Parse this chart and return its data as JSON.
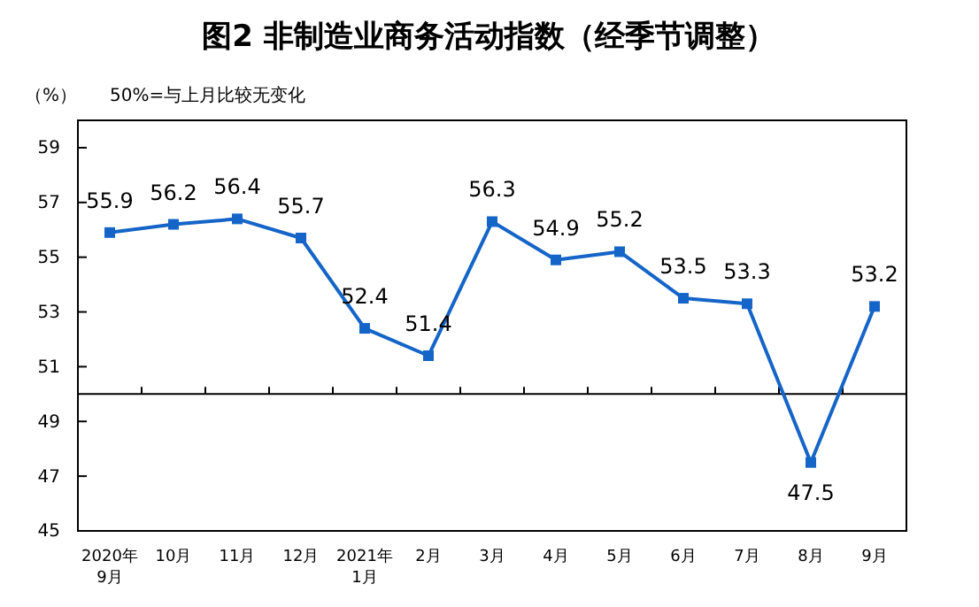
{
  "chart_data": {
    "type": "line",
    "title": "图2  非制造业商务活动指数（经季节调整）",
    "annotations": [
      "（%）",
      "50%=与上月比较无变化"
    ],
    "categories": [
      "2020年\n9月",
      "10月",
      "11月",
      "12月",
      "2021年\n1月",
      "2月",
      "3月",
      "4月",
      "5月",
      "6月",
      "7月",
      "8月",
      "9月"
    ],
    "series": [
      {
        "color": "#1565c8",
        "values": [
          55.9,
          56.2,
          56.4,
          55.7,
          52.4,
          51.4,
          56.3,
          54.9,
          55.2,
          53.5,
          53.3,
          47.5,
          53.2
        ]
      }
    ],
    "ylim": [
      45,
      60
    ],
    "yticks": [
      45,
      47,
      49,
      51,
      53,
      55,
      57,
      59
    ],
    "ref_lines": [
      {
        "axis": "y",
        "value": 50,
        "color": "#000000"
      }
    ],
    "data_labels": true,
    "marker": "square",
    "line_style": "solid",
    "grid": false
  }
}
